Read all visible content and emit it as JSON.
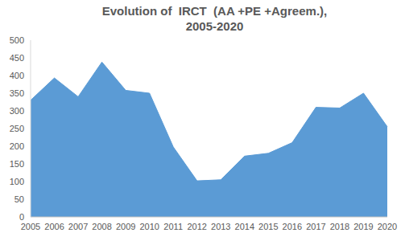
{
  "chart_data": {
    "type": "area",
    "title": "Evolution of  IRCT  (AA +PE +Agreem.),\n2005-2020",
    "categories": [
      "2005",
      "2006",
      "2007",
      "2008",
      "2009",
      "2010",
      "2011",
      "2012",
      "2013",
      "2014",
      "2015",
      "2016",
      "2017",
      "2018",
      "2019",
      "2020"
    ],
    "values": [
      330,
      393,
      340,
      438,
      358,
      350,
      198,
      102,
      105,
      172,
      180,
      210,
      310,
      308,
      350,
      255
    ],
    "color": "#5b9bd5",
    "ylim": [
      0,
      500
    ],
    "yticks": [
      0,
      50,
      100,
      150,
      200,
      250,
      300,
      350,
      400,
      450,
      500
    ],
    "grid": false
  }
}
